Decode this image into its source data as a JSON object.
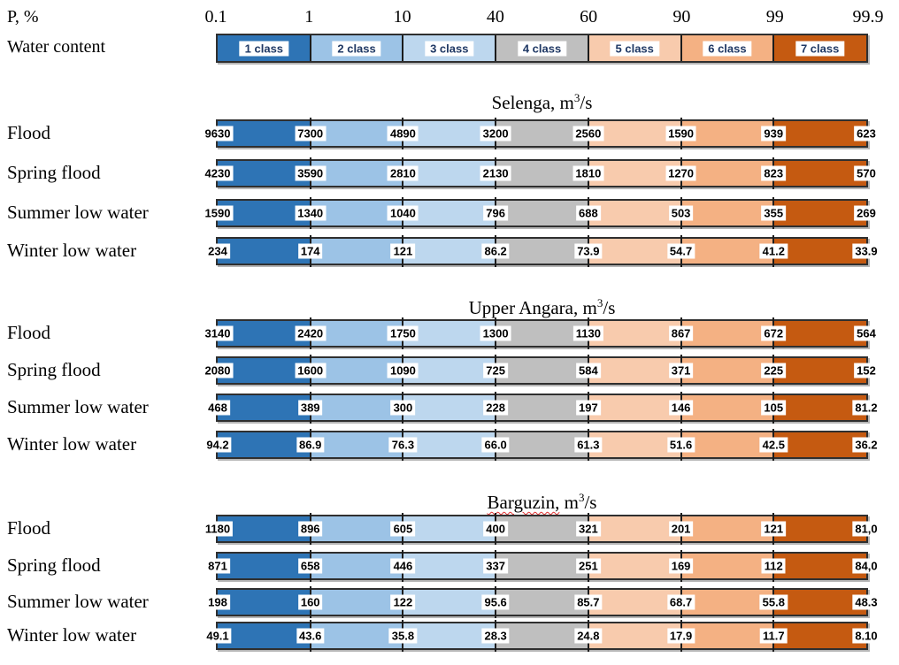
{
  "header": {
    "p_label": "P, %",
    "water_content_label": "Water content",
    "ticks": [
      "0.1",
      "1",
      "10",
      "40",
      "60",
      "90",
      "99",
      "99.9"
    ],
    "classes": [
      {
        "label": "1 class",
        "color": "#2E74B5"
      },
      {
        "label": "2 class",
        "color": "#9CC3E6"
      },
      {
        "label": "3 class",
        "color": "#BDD7EE"
      },
      {
        "label": "4 class",
        "color": "#BFBFBF"
      },
      {
        "label": "5 class",
        "color": "#F8CBAD"
      },
      {
        "label": "6 class",
        "color": "#F4B183"
      },
      {
        "label": "7 class",
        "color": "#C55A11"
      }
    ]
  },
  "sections": [
    {
      "title": {
        "name": "Selenga,",
        "unit": " m",
        "sup": "3",
        "tail": "/s"
      },
      "spellcheck_underline": false,
      "rows": [
        {
          "label": "Flood",
          "values": [
            "9630",
            "7300",
            "4890",
            "3200",
            "2560",
            "1590",
            "939",
            "623"
          ]
        },
        {
          "label": "Spring flood",
          "values": [
            "4230",
            "3590",
            "2810",
            "2130",
            "1810",
            "1270",
            "823",
            "570"
          ]
        },
        {
          "label": "Summer low water",
          "values": [
            "1590",
            "1340",
            "1040",
            "796",
            "688",
            "503",
            "355",
            "269"
          ]
        },
        {
          "label": "Winter low water",
          "values": [
            "234",
            "174",
            "121",
            "86.2",
            "73.9",
            "54.7",
            "41.2",
            "33.9"
          ]
        }
      ]
    },
    {
      "title": {
        "name": "Upper Angara,",
        "unit": " m",
        "sup": "3",
        "tail": "/s"
      },
      "spellcheck_underline": false,
      "rows": [
        {
          "label": "Flood",
          "values": [
            "3140",
            "2420",
            "1750",
            "1300",
            "1130",
            "867",
            "672",
            "564"
          ]
        },
        {
          "label": "Spring flood",
          "values": [
            "2080",
            "1600",
            "1090",
            "725",
            "584",
            "371",
            "225",
            "152"
          ]
        },
        {
          "label": "Summer low water",
          "values": [
            "468",
            "389",
            "300",
            "228",
            "197",
            "146",
            "105",
            "81.2"
          ]
        },
        {
          "label": "Winter low water",
          "values": [
            "94.2",
            "86.9",
            "76.3",
            "66.0",
            "61.3",
            "51.6",
            "42.5",
            "36.2"
          ]
        }
      ]
    },
    {
      "title": {
        "name": "Barguzin,",
        "unit": " m",
        "sup": "3",
        "tail": "/s"
      },
      "spellcheck_underline": true,
      "rows": [
        {
          "label": "Flood",
          "values": [
            "1180",
            "896",
            "605",
            "400",
            "321",
            "201",
            "121",
            "81,0"
          ]
        },
        {
          "label": "Spring flood",
          "values": [
            "871",
            "658",
            "446",
            "337",
            "251",
            "169",
            "112",
            "84,0"
          ]
        },
        {
          "label": "Summer low water",
          "values": [
            "198",
            "160",
            "122",
            "95.6",
            "85.7",
            "68.7",
            "55.8",
            "48.3"
          ]
        },
        {
          "label": "Winter low water",
          "values": [
            "49.1",
            "43.6",
            "35.8",
            "28.3",
            "24.8",
            "17.9",
            "11.7",
            "8.10"
          ]
        }
      ]
    }
  ],
  "chart_data": {
    "type": "table",
    "title": "Water content classes by exceedance probability",
    "x_probability_percent": [
      0.1,
      1,
      10,
      40,
      60,
      90,
      99,
      99.9
    ],
    "water_content_classes": [
      "1 class",
      "2 class",
      "3 class",
      "4 class",
      "5 class",
      "6 class",
      "7 class"
    ],
    "class_colors": [
      "#2E74B5",
      "#9CC3E6",
      "#BDD7EE",
      "#BFBFBF",
      "#F8CBAD",
      "#F4B183",
      "#C55A11"
    ],
    "rivers": [
      {
        "name": "Selenga",
        "unit": "m3/s",
        "series": [
          {
            "name": "Flood",
            "values": [
              9630,
              7300,
              4890,
              3200,
              2560,
              1590,
              939,
              623
            ]
          },
          {
            "name": "Spring flood",
            "values": [
              4230,
              3590,
              2810,
              2130,
              1810,
              1270,
              823,
              570
            ]
          },
          {
            "name": "Summer low water",
            "values": [
              1590,
              1340,
              1040,
              796,
              688,
              503,
              355,
              269
            ]
          },
          {
            "name": "Winter low water",
            "values": [
              234,
              174,
              121,
              86.2,
              73.9,
              54.7,
              41.2,
              33.9
            ]
          }
        ]
      },
      {
        "name": "Upper Angara",
        "unit": "m3/s",
        "series": [
          {
            "name": "Flood",
            "values": [
              3140,
              2420,
              1750,
              1300,
              1130,
              867,
              672,
              564
            ]
          },
          {
            "name": "Spring flood",
            "values": [
              2080,
              1600,
              1090,
              725,
              584,
              371,
              225,
              152
            ]
          },
          {
            "name": "Summer low water",
            "values": [
              468,
              389,
              300,
              228,
              197,
              146,
              105,
              81.2
            ]
          },
          {
            "name": "Winter low water",
            "values": [
              94.2,
              86.9,
              76.3,
              66.0,
              61.3,
              51.6,
              42.5,
              36.2
            ]
          }
        ]
      },
      {
        "name": "Barguzin",
        "unit": "m3/s",
        "series": [
          {
            "name": "Flood",
            "values": [
              1180,
              896,
              605,
              400,
              321,
              201,
              121,
              81.0
            ]
          },
          {
            "name": "Spring flood",
            "values": [
              871,
              658,
              446,
              337,
              251,
              169,
              112,
              84.0
            ]
          },
          {
            "name": "Summer low water",
            "values": [
              198,
              160,
              122,
              95.6,
              85.7,
              68.7,
              55.8,
              48.3
            ]
          },
          {
            "name": "Winter low water",
            "values": [
              49.1,
              43.6,
              35.8,
              28.3,
              24.8,
              17.9,
              11.7,
              8.1
            ]
          }
        ]
      }
    ],
    "layout": {
      "x_axis_segments_equal_width": true,
      "labels_at_segment_boundaries": true,
      "legend_position": "top"
    }
  }
}
